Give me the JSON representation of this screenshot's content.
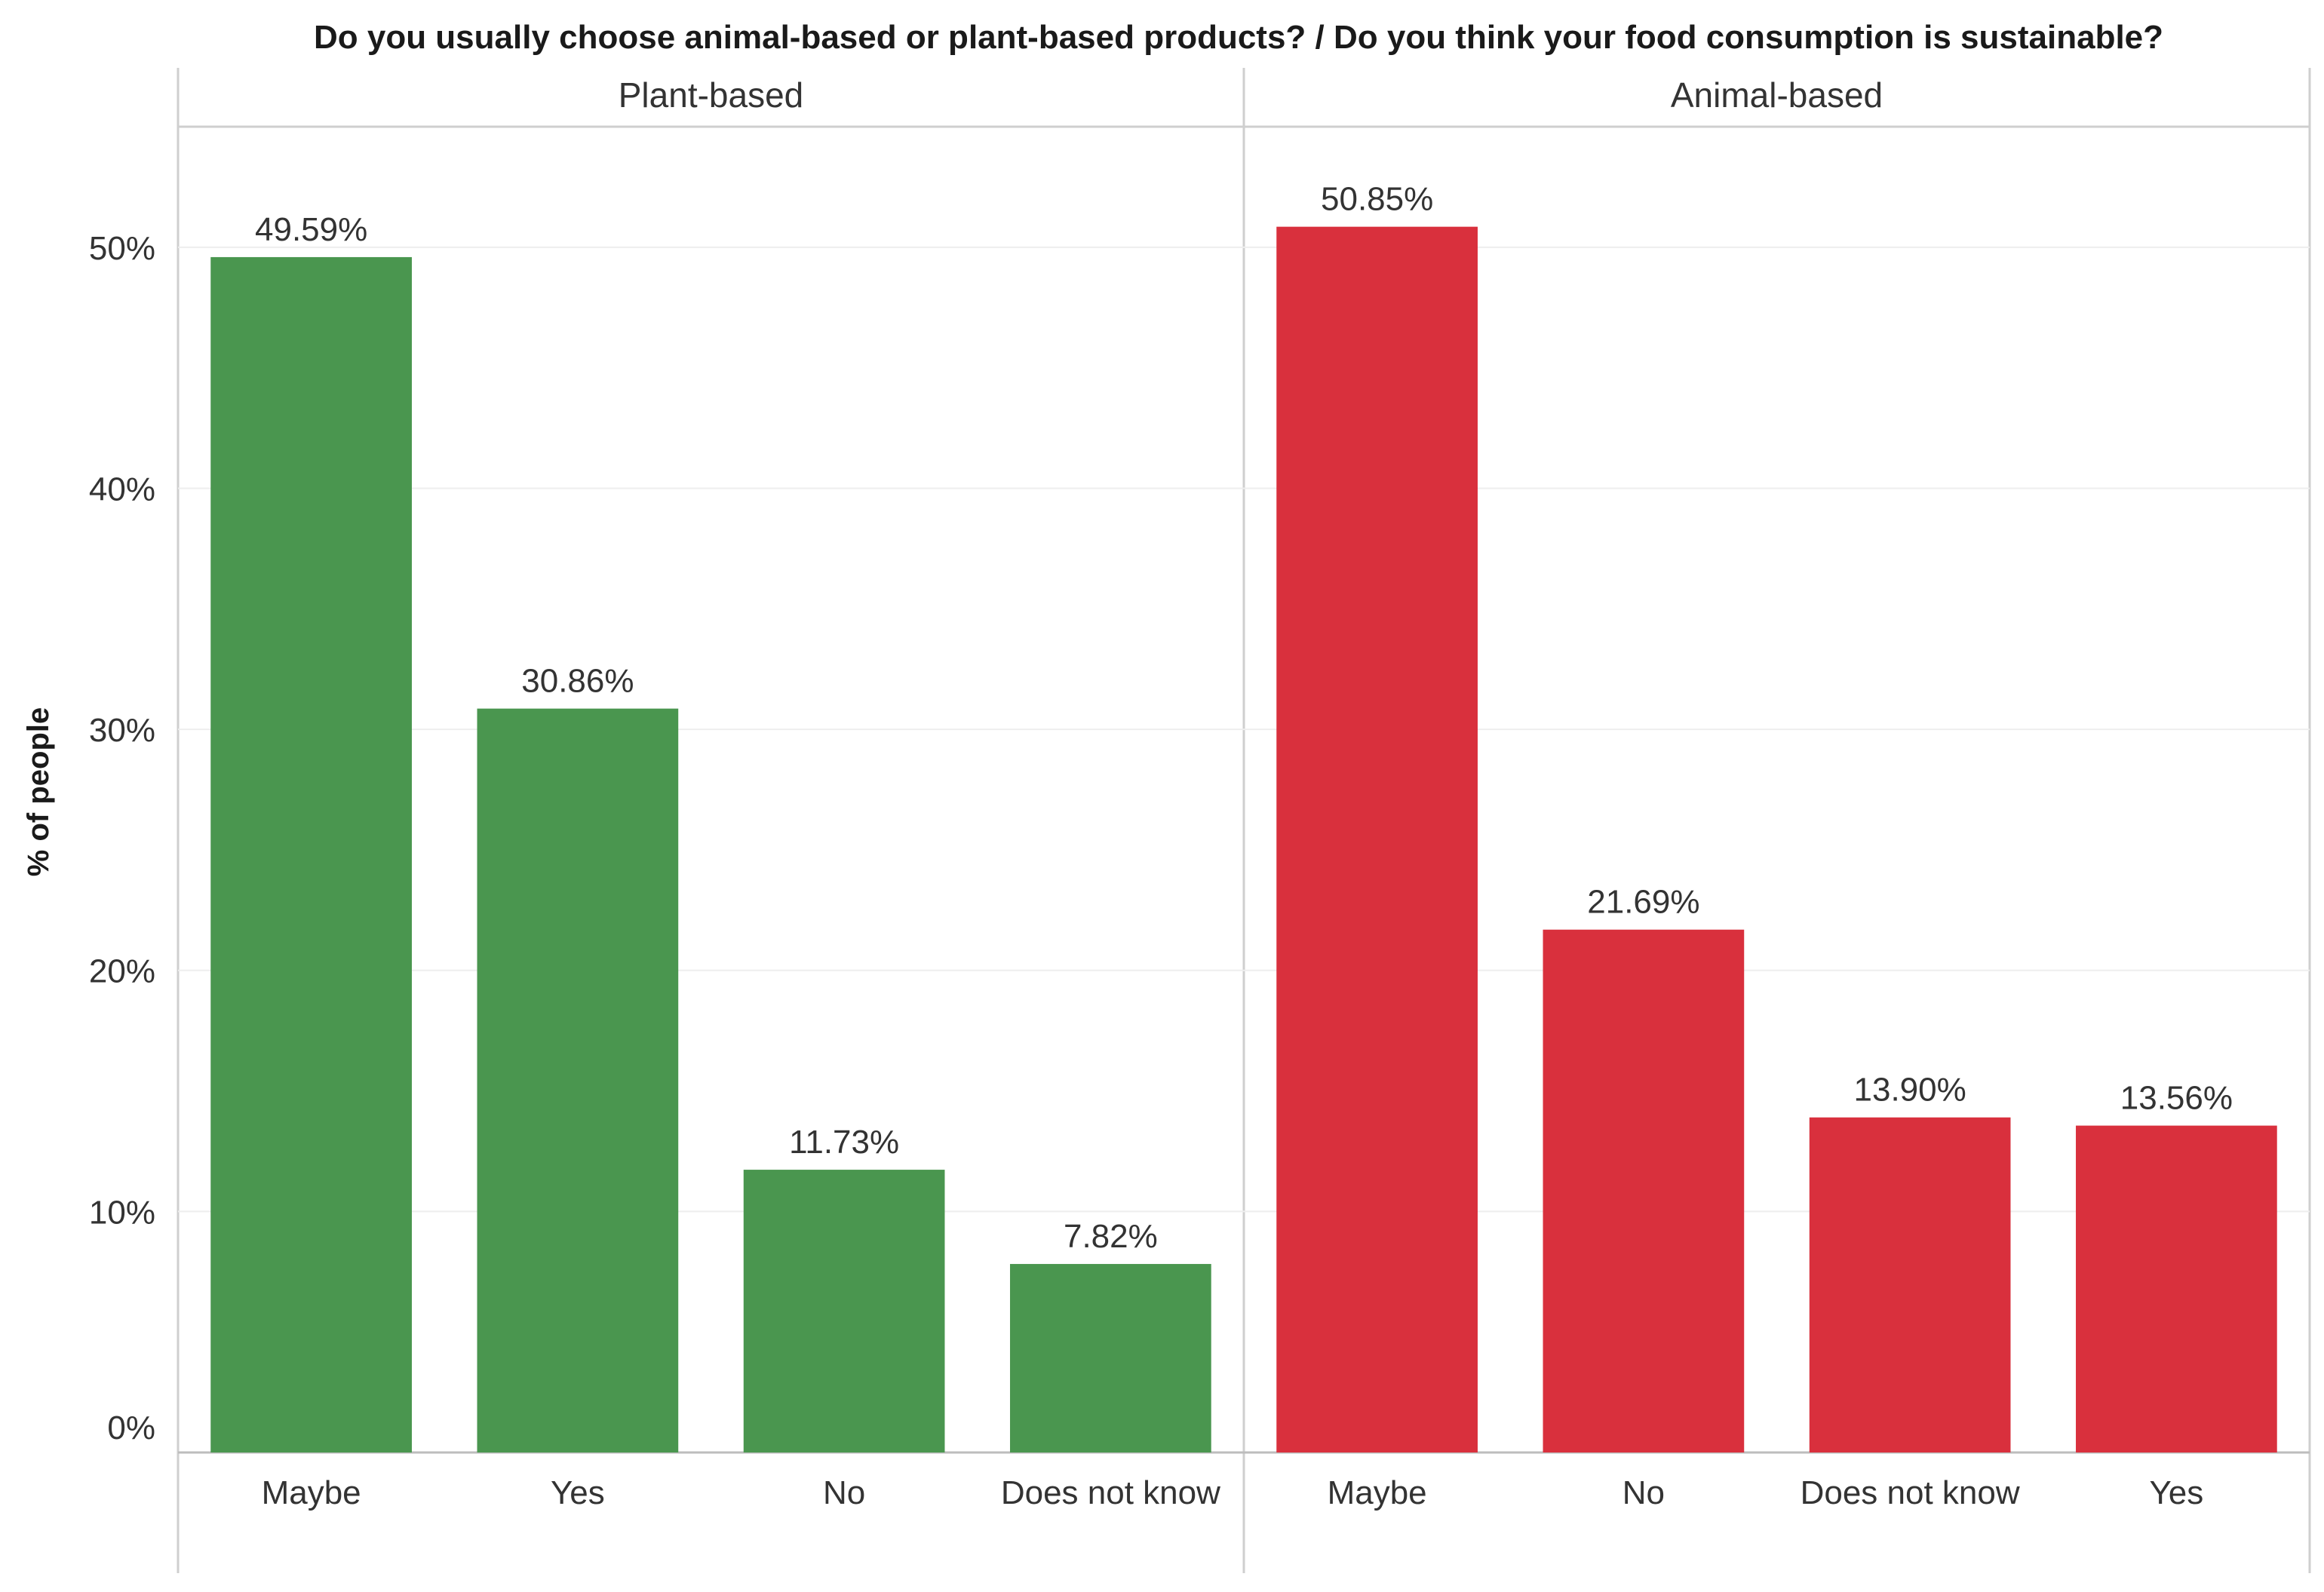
{
  "chart_data": {
    "type": "bar",
    "title": "Do you usually choose animal-based or plant-based products?  /  Do you think your food consumption is sustainable?",
    "ylabel": "% of people",
    "xlabel": "",
    "ylim": [
      0,
      55
    ],
    "yticks": [
      0,
      10,
      20,
      30,
      40,
      50
    ],
    "ytick_labels": [
      "0%",
      "10%",
      "20%",
      "30%",
      "40%",
      "50%"
    ],
    "grid": true,
    "legend": "none",
    "panels": [
      {
        "name": "Plant-based",
        "color": "#4a964f",
        "categories": [
          "Maybe",
          "Yes",
          "No",
          "Does not know"
        ],
        "values": [
          49.59,
          30.86,
          11.73,
          7.82
        ],
        "value_labels": [
          "49.59%",
          "30.86%",
          "11.73%",
          "7.82%"
        ]
      },
      {
        "name": "Animal-based",
        "color": "#d9303d",
        "categories": [
          "Maybe",
          "No",
          "Does not know",
          "Yes"
        ],
        "values": [
          50.85,
          21.69,
          13.9,
          13.56
        ],
        "value_labels": [
          "50.85%",
          "21.69%",
          "13.90%",
          "13.56%"
        ]
      }
    ]
  }
}
